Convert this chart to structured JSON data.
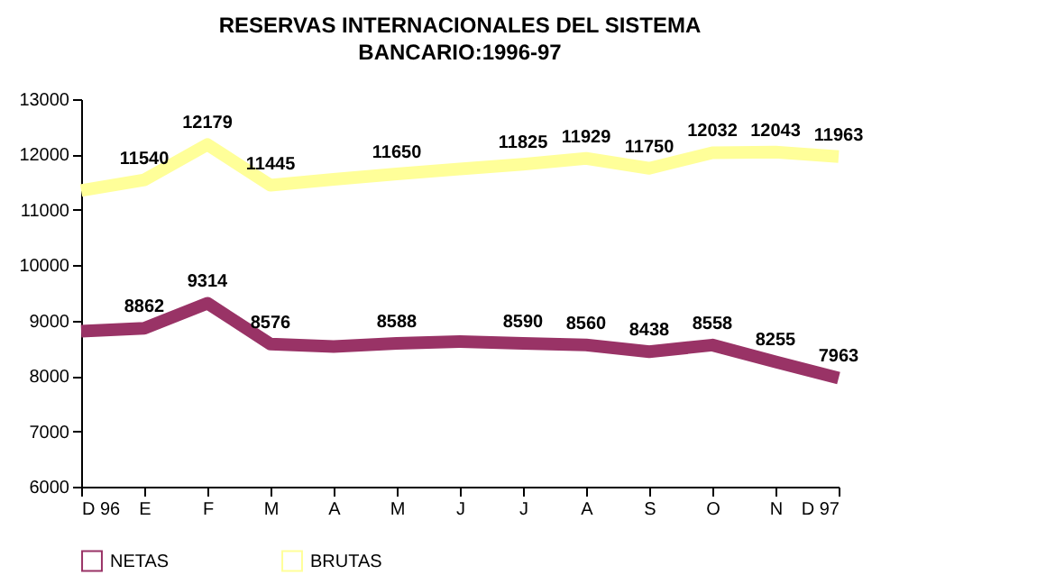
{
  "chart_data": {
    "type": "line",
    "title": "RESERVAS INTERNACIONALES DEL SISTEMA",
    "subtitle": "BANCARIO:1996-97",
    "categories": [
      "D 96",
      "E",
      "F",
      "M",
      "A",
      "M",
      "J",
      "J",
      "A",
      "S",
      "O",
      "N",
      "D 97"
    ],
    "series": [
      {
        "name": "NETAS",
        "color": "#993366",
        "values": [
          8810,
          8862,
          9314,
          8576,
          8530,
          8588,
          8620,
          8590,
          8560,
          8438,
          8558,
          8255,
          7963
        ],
        "value_labels": [
          null,
          "8862",
          "9314",
          "8576",
          null,
          "8588",
          null,
          "8590",
          "8560",
          "8438",
          "8558",
          "8255",
          "7963"
        ]
      },
      {
        "name": "BRUTAS",
        "color": "#ffff99",
        "values": [
          11350,
          11540,
          12179,
          11445,
          11550,
          11650,
          11740,
          11825,
          11929,
          11750,
          12032,
          12043,
          11963
        ],
        "value_labels": [
          null,
          "11540",
          "12179",
          "11445",
          null,
          "11650",
          null,
          "11825",
          "11929",
          "11750",
          "12032",
          "12043",
          "11963"
        ]
      }
    ],
    "ylim": [
      6000,
      13000
    ],
    "yticks": [
      6000,
      7000,
      8000,
      9000,
      10000,
      11000,
      12000,
      13000
    ],
    "grid": false,
    "legend": "bottom",
    "marker": "none",
    "line_style": "solid"
  }
}
